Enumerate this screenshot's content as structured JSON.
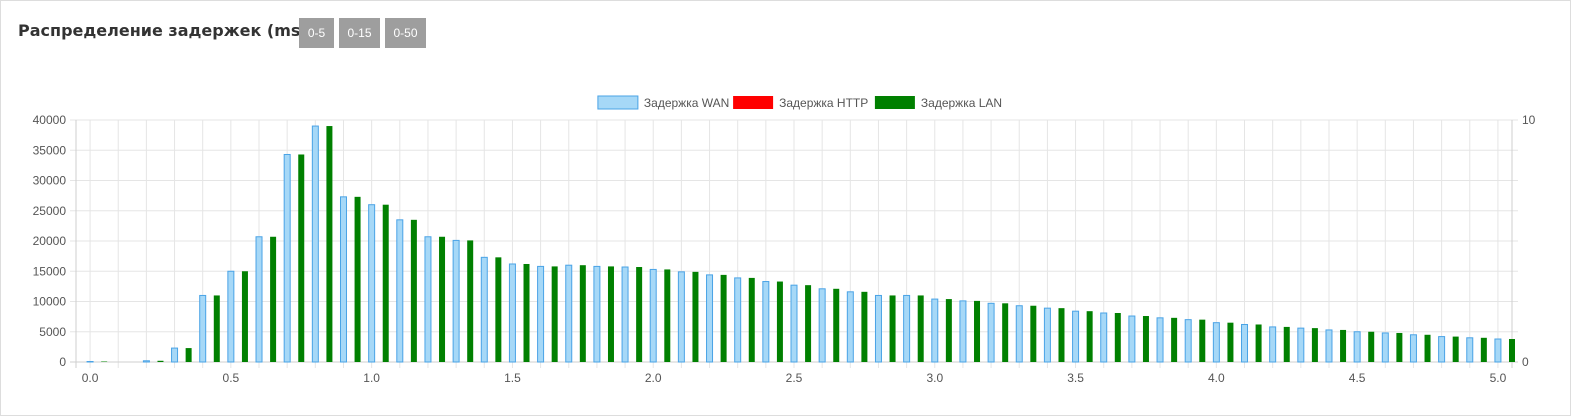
{
  "header": {
    "title": "Распределение задержек (ms)",
    "buttons": [
      "0-5",
      "0-15",
      "0-50"
    ]
  },
  "colors": {
    "wan_fill": "#a6d8f7",
    "wan_border": "#4aa3e6",
    "http_fill": "#ff0000",
    "lan_fill": "#008000",
    "grid": "#e5e5e5",
    "button": "#9e9e9e"
  },
  "chart_data": {
    "type": "bar",
    "title": "",
    "xlabel": "",
    "ylabel": "",
    "legend_position": "top",
    "grid": true,
    "x_range": [
      -0.05,
      5.05
    ],
    "y_range": [
      0,
      40000
    ],
    "y2_range": [
      0,
      10
    ],
    "x_ticks": [
      "0.0",
      "0.5",
      "1.0",
      "1.5",
      "2.0",
      "2.5",
      "3.0",
      "3.5",
      "4.0",
      "4.5",
      "5.0"
    ],
    "y_ticks": [
      "0",
      "5000",
      "10000",
      "15000",
      "20000",
      "25000",
      "30000",
      "35000",
      "40000"
    ],
    "y2_ticks": [
      "0",
      "10"
    ],
    "series": [
      {
        "name": "Задержка WAN",
        "color": "#a6d8f7",
        "x": [
          0.0,
          0.2,
          0.3,
          0.4,
          0.5,
          0.6,
          0.7,
          0.8,
          0.9,
          1.0,
          1.1,
          1.2,
          1.3,
          1.4,
          1.5,
          1.6,
          1.7,
          1.8,
          1.9,
          2.0,
          2.1,
          2.2,
          2.3,
          2.4,
          2.5,
          2.6,
          2.7,
          2.8,
          2.9,
          3.0,
          3.1,
          3.2,
          3.3,
          3.4,
          3.5,
          3.6,
          3.7,
          3.8,
          3.9,
          4.0,
          4.1,
          4.2,
          4.3,
          4.4,
          4.5,
          4.6,
          4.7,
          4.8,
          4.9,
          5.0
        ],
        "values": [
          30,
          200,
          2300,
          11000,
          15000,
          20700,
          34300,
          39000,
          27300,
          26000,
          23500,
          20700,
          20100,
          17300,
          16200,
          15800,
          16000,
          15800,
          15700,
          15300,
          14900,
          14400,
          13900,
          13300,
          12700,
          12100,
          11600,
          11000,
          11000,
          10400,
          10100,
          9700,
          9300,
          8900,
          8400,
          8100,
          7600,
          7300,
          7000,
          6500,
          6200,
          5800,
          5600,
          5300,
          5000,
          4800,
          4500,
          4200,
          4000,
          3800
        ]
      },
      {
        "name": "Задержка HTTP",
        "color": "#ff0000",
        "x": [],
        "values": []
      },
      {
        "name": "Задержка LAN",
        "color": "#008000",
        "x": [
          0.05,
          0.25,
          0.35,
          0.45,
          0.55,
          0.65,
          0.75,
          0.85,
          0.95,
          1.05,
          1.15,
          1.25,
          1.35,
          1.45,
          1.55,
          1.65,
          1.75,
          1.85,
          1.95,
          2.05,
          2.15,
          2.25,
          2.35,
          2.45,
          2.55,
          2.65,
          2.75,
          2.85,
          2.95,
          3.05,
          3.15,
          3.25,
          3.35,
          3.45,
          3.55,
          3.65,
          3.75,
          3.85,
          3.95,
          4.05,
          4.15,
          4.25,
          4.35,
          4.45,
          4.55,
          4.65,
          4.75,
          4.85,
          4.95,
          5.05
        ],
        "values": [
          30,
          200,
          2300,
          11000,
          15000,
          20700,
          34300,
          39000,
          27300,
          26000,
          23500,
          20700,
          20100,
          17300,
          16200,
          15800,
          16000,
          15800,
          15700,
          15300,
          14900,
          14400,
          13900,
          13300,
          12700,
          12100,
          11600,
          11000,
          11000,
          10400,
          10100,
          9700,
          9300,
          8900,
          8400,
          8100,
          7600,
          7300,
          7000,
          6500,
          6200,
          5800,
          5600,
          5300,
          5000,
          4800,
          4500,
          4200,
          4000,
          3800
        ]
      }
    ]
  }
}
